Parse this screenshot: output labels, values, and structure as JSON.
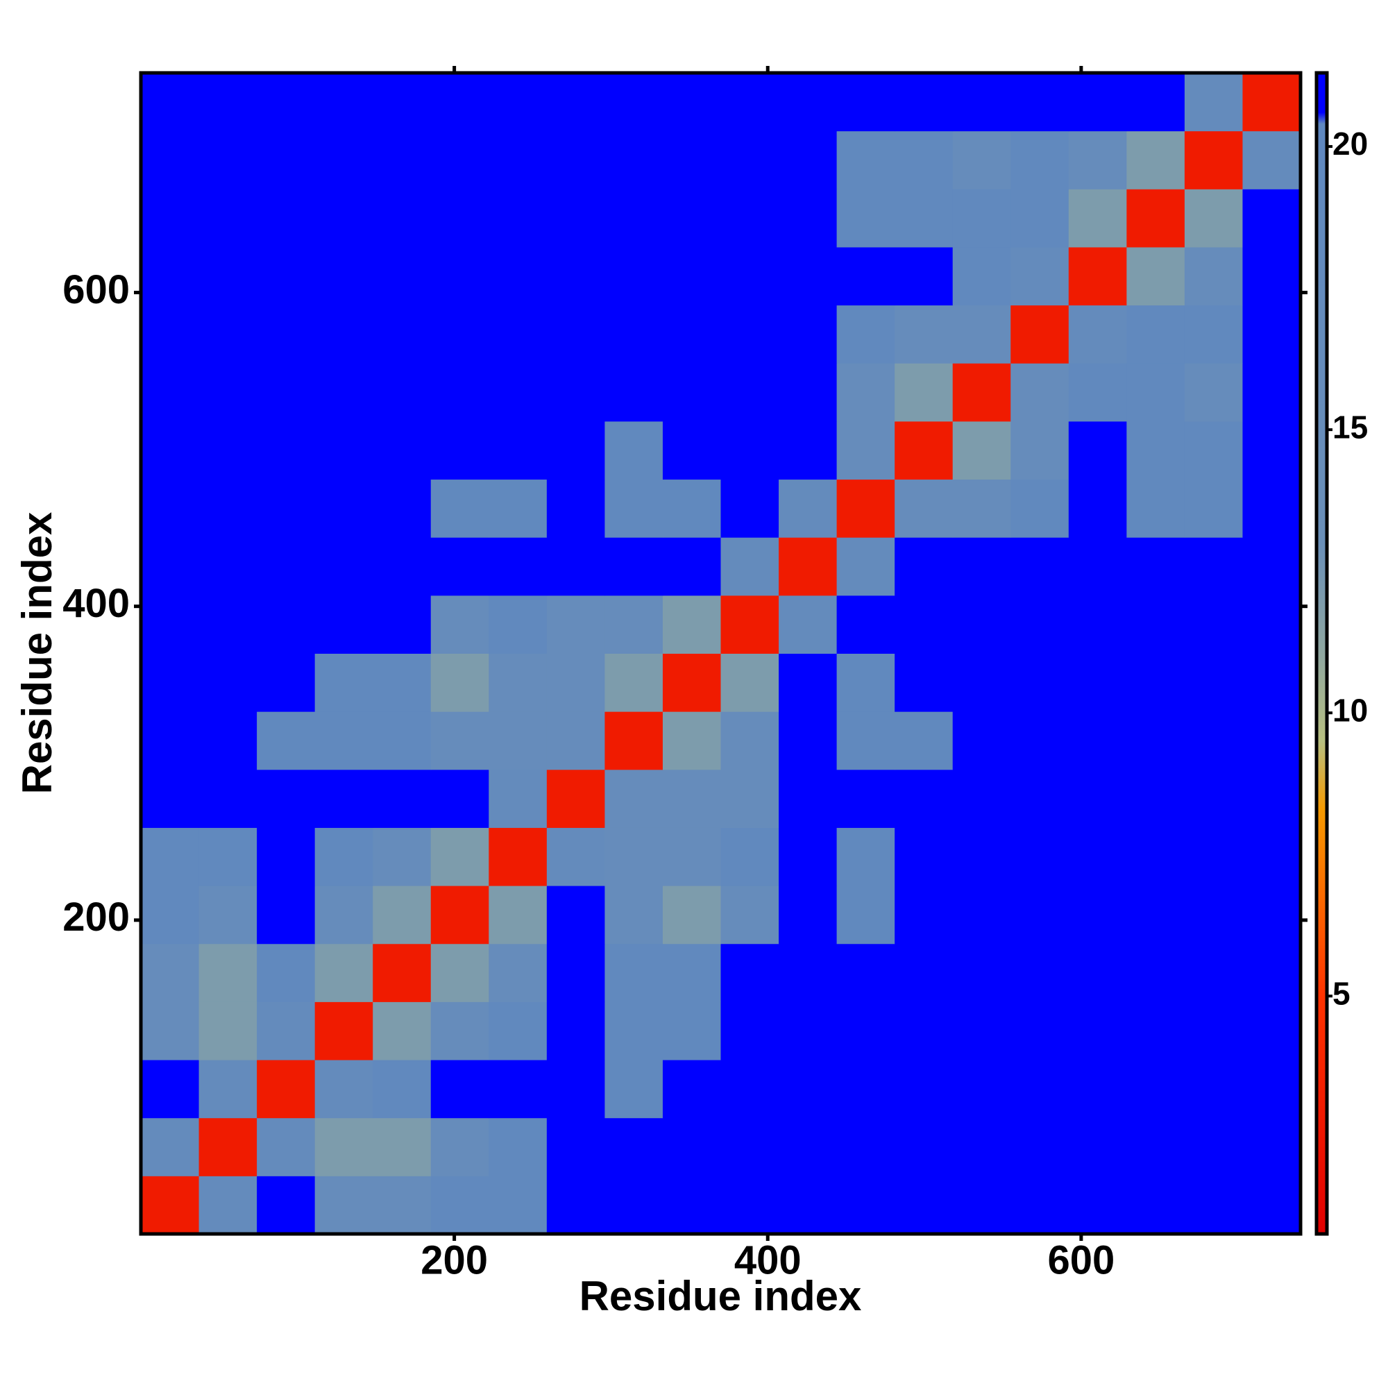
{
  "chart_data": {
    "type": "heatmap",
    "xlabel": "Residue index",
    "ylabel": "Residue index",
    "xlim": [
      0,
      740
    ],
    "ylim": [
      0,
      740
    ],
    "xticks": [
      200,
      400,
      600
    ],
    "yticks": [
      200,
      400,
      600
    ],
    "xbins": [
      0,
      37,
      74,
      111,
      148,
      185,
      222,
      259,
      296,
      333,
      370,
      407,
      444,
      481,
      518,
      555,
      592,
      629,
      666,
      703,
      740
    ],
    "ybins": [
      0,
      37,
      74,
      111,
      148,
      185,
      222,
      259,
      296,
      333,
      370,
      407,
      444,
      481,
      518,
      555,
      592,
      629,
      666,
      703,
      740
    ],
    "zlim": [
      0.8,
      21.3
    ],
    "zticks": [
      5,
      10,
      15,
      20
    ],
    "colorscale": [
      {
        "value": 0.8,
        "color": "#e00000"
      },
      {
        "value": 5,
        "color": "#ff3300"
      },
      {
        "value": 8.3,
        "color": "#f59a00"
      },
      {
        "value": 9.5,
        "color": "#b8c080"
      },
      {
        "value": 11,
        "color": "#90a8a0"
      },
      {
        "value": 13,
        "color": "#6a8fb8"
      },
      {
        "value": 20.4,
        "color": "#5f88c0"
      },
      {
        "value": 20.6,
        "color": "#0000ff"
      },
      {
        "value": 21.3,
        "color": "#0000ff"
      }
    ],
    "z": [
      [
        3,
        17,
        21,
        16,
        16,
        19,
        19,
        21,
        21,
        21,
        21,
        21,
        21,
        21,
        21,
        21,
        21,
        21,
        21,
        21
      ],
      [
        17,
        3,
        17,
        12,
        12,
        16,
        19,
        21,
        21,
        21,
        21,
        21,
        21,
        21,
        21,
        21,
        21,
        21,
        21,
        21
      ],
      [
        21,
        17,
        3,
        17,
        19,
        21,
        21,
        21,
        19,
        21,
        21,
        21,
        21,
        21,
        21,
        21,
        21,
        21,
        21,
        21
      ],
      [
        16,
        12,
        17,
        3,
        12,
        16,
        19,
        21,
        19,
        19,
        21,
        21,
        21,
        21,
        21,
        21,
        21,
        21,
        21,
        21
      ],
      [
        16,
        12,
        19,
        12,
        3,
        12,
        16,
        21,
        19,
        19,
        21,
        21,
        21,
        21,
        21,
        21,
        21,
        21,
        21,
        21
      ],
      [
        19,
        16,
        21,
        16,
        12,
        3,
        12,
        21,
        16,
        12,
        16,
        21,
        19,
        21,
        21,
        21,
        21,
        21,
        21,
        21
      ],
      [
        19,
        19,
        21,
        19,
        16,
        12,
        3,
        17,
        16,
        16,
        19,
        21,
        19,
        21,
        21,
        21,
        21,
        21,
        21,
        21
      ],
      [
        21,
        21,
        21,
        21,
        21,
        21,
        17,
        3,
        16,
        16,
        16,
        21,
        21,
        21,
        21,
        21,
        21,
        21,
        21,
        21
      ],
      [
        21,
        21,
        19,
        19,
        19,
        16,
        16,
        16,
        3,
        12,
        16,
        21,
        19,
        19,
        21,
        21,
        21,
        21,
        21,
        21
      ],
      [
        21,
        21,
        21,
        19,
        19,
        12,
        16,
        16,
        12,
        3,
        12,
        21,
        19,
        21,
        21,
        21,
        21,
        21,
        21,
        21
      ],
      [
        21,
        21,
        21,
        21,
        21,
        16,
        19,
        16,
        16,
        12,
        3,
        17,
        21,
        21,
        21,
        21,
        21,
        21,
        21,
        21
      ],
      [
        21,
        21,
        21,
        21,
        21,
        21,
        21,
        21,
        21,
        21,
        17,
        3,
        17,
        21,
        21,
        21,
        21,
        21,
        21,
        21
      ],
      [
        21,
        21,
        21,
        21,
        21,
        19,
        19,
        21,
        19,
        19,
        21,
        17,
        3,
        16,
        16,
        19,
        21,
        19,
        19,
        21
      ],
      [
        21,
        21,
        21,
        21,
        21,
        21,
        21,
        21,
        19,
        21,
        21,
        21,
        16,
        3,
        12,
        16,
        21,
        19,
        19,
        21
      ],
      [
        21,
        21,
        21,
        21,
        21,
        21,
        21,
        21,
        21,
        21,
        21,
        21,
        16,
        12,
        3,
        16,
        19,
        19,
        16,
        21
      ],
      [
        21,
        21,
        21,
        21,
        21,
        21,
        21,
        21,
        21,
        21,
        21,
        21,
        19,
        16,
        16,
        3,
        17,
        19,
        19,
        21
      ],
      [
        21,
        21,
        21,
        21,
        21,
        21,
        21,
        21,
        21,
        21,
        21,
        21,
        21,
        21,
        19,
        17,
        3,
        12,
        16,
        21
      ],
      [
        21,
        21,
        21,
        21,
        21,
        21,
        21,
        21,
        21,
        21,
        21,
        21,
        19,
        19,
        19,
        19,
        12,
        3,
        12,
        21
      ],
      [
        21,
        21,
        21,
        21,
        21,
        21,
        21,
        21,
        21,
        21,
        21,
        21,
        19,
        19,
        16,
        19,
        16,
        12,
        3,
        17
      ],
      [
        21,
        21,
        21,
        21,
        21,
        21,
        21,
        21,
        21,
        21,
        21,
        21,
        21,
        21,
        21,
        21,
        21,
        21,
        17,
        3
      ]
    ]
  }
}
